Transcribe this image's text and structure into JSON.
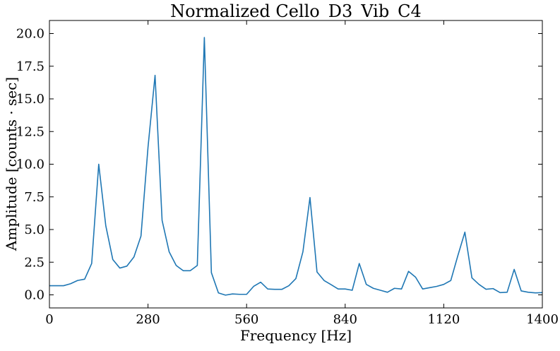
{
  "chart_data": {
    "type": "line",
    "title": "Normalized Cello_D3_Vib_C4",
    "xlabel": "Frequency [Hz]",
    "ylabel": "Amplitude [counts · sec]",
    "xlim": [
      0,
      1400
    ],
    "ylim": [
      -1.0,
      21.0
    ],
    "xticks": [
      0,
      280,
      560,
      840,
      1120,
      1400
    ],
    "xtick_labels": [
      "0",
      "280",
      "560",
      "840",
      "1120",
      "1400"
    ],
    "yticks": [
      0.0,
      2.5,
      5.0,
      7.5,
      10.0,
      12.5,
      15.0,
      17.5,
      20.0
    ],
    "ytick_labels": [
      "0.0",
      "2.5",
      "5.0",
      "7.5",
      "10.0",
      "12.5",
      "15.0",
      "17.5",
      "20.0"
    ],
    "grid": false,
    "line_color": "#1f77b4",
    "series": [
      {
        "x": [
          0,
          20,
          40,
          60,
          80,
          100,
          120,
          140,
          160,
          180,
          200,
          220,
          240,
          260,
          280,
          300,
          320,
          340,
          360,
          380,
          400,
          420,
          440,
          460,
          480,
          500,
          520,
          540,
          560,
          580,
          600,
          620,
          640,
          660,
          680,
          700,
          720,
          740,
          760,
          780,
          800,
          820,
          840,
          860,
          880,
          900,
          920,
          940,
          960,
          980,
          1000,
          1020,
          1040,
          1060,
          1080,
          1100,
          1120,
          1140,
          1160,
          1180,
          1200,
          1220,
          1240,
          1260,
          1280,
          1300,
          1320,
          1340,
          1360,
          1380,
          1400
        ],
        "y": [
          0.7,
          0.7,
          0.7,
          0.85,
          1.1,
          1.2,
          2.4,
          10.0,
          5.3,
          2.7,
          2.05,
          2.2,
          2.9,
          4.5,
          11.3,
          16.8,
          5.7,
          3.3,
          2.25,
          1.85,
          1.85,
          2.25,
          19.7,
          1.7,
          0.15,
          -0.02,
          0.07,
          0.04,
          0.04,
          0.65,
          0.97,
          0.45,
          0.42,
          0.42,
          0.7,
          1.25,
          3.3,
          7.45,
          1.75,
          1.1,
          0.78,
          0.45,
          0.45,
          0.35,
          2.4,
          0.8,
          0.5,
          0.35,
          0.2,
          0.5,
          0.45,
          1.8,
          1.35,
          0.45,
          0.55,
          0.65,
          0.8,
          1.1,
          3.0,
          4.8,
          1.3,
          0.8,
          0.43,
          0.48,
          0.17,
          0.2,
          1.95,
          0.3,
          0.2,
          0.15,
          0.17
        ]
      }
    ]
  }
}
